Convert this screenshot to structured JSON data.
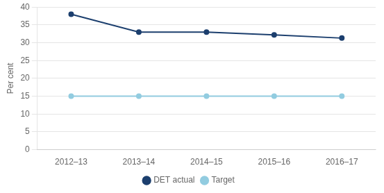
{
  "chart_data": {
    "type": "line",
    "categories": [
      "2012–13",
      "2013–14",
      "2014–15",
      "2015–16",
      "2016–17"
    ],
    "series": [
      {
        "name": "DET actual",
        "color": "#1c3f6e",
        "values": [
          38.0,
          33.0,
          33.0,
          32.2,
          31.3
        ]
      },
      {
        "name": "Target",
        "color": "#92cce0",
        "values": [
          15.0,
          15.0,
          15.0,
          15.0,
          15.0
        ]
      }
    ],
    "ylabel": "Per cent",
    "ylim": [
      0,
      40
    ],
    "yticks": [
      0,
      5,
      10,
      15,
      20,
      25,
      30,
      35,
      40
    ],
    "grid": true,
    "legend": "bottom",
    "marker": "circle"
  }
}
